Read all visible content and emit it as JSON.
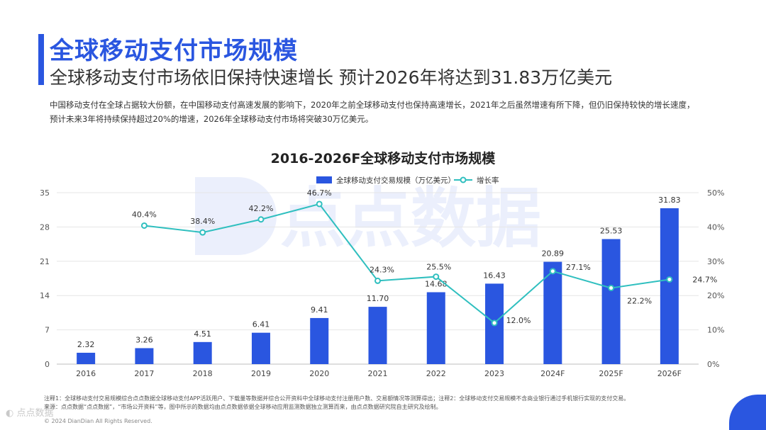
{
  "header": {
    "title": "全球移动支付市场规模",
    "subtitle": "全球移动支付市场依旧保持快速增长 预计2026年将达到31.83万亿美元"
  },
  "description": {
    "line1": "中国移动支付在全球占据较大份额，在中国移动支付高速发展的影响下，2020年之前全球移动支付也保持高速增长，2021年之后虽然增速有所下降，但仍旧保持较快的增长速度，",
    "line2": "预计未来3年将持续保持超过20%的增速，2026年全球移动支付市场将突破30万亿美元。"
  },
  "watermark": {
    "text": "点点数据"
  },
  "chart_data": {
    "type": "bar",
    "title": "2016-2026F全球移动支付市场规模",
    "categories": [
      "2016",
      "2017",
      "2018",
      "2019",
      "2020",
      "2021",
      "2022",
      "2023",
      "2024F",
      "2025F",
      "2026F"
    ],
    "series": [
      {
        "name": "全球移动支付交易规模（万亿美元）",
        "type": "bar",
        "axis": "left",
        "color": "#2a56e0",
        "values": [
          2.32,
          3.26,
          4.51,
          6.41,
          9.41,
          11.7,
          14.68,
          16.43,
          20.89,
          25.53,
          31.83
        ],
        "labels": [
          "2.32",
          "3.26",
          "4.51",
          "6.41",
          "9.41",
          "11.70",
          "14.68",
          "16.43",
          "20.89",
          "25.53",
          "31.83"
        ]
      },
      {
        "name": "增长率",
        "type": "line",
        "axis": "right",
        "color": "#2fbfbf",
        "values": [
          null,
          40.4,
          38.4,
          42.2,
          46.7,
          24.3,
          25.5,
          12.0,
          27.1,
          22.2,
          24.7
        ],
        "labels": [
          "",
          "40.4%",
          "38.4%",
          "42.2%",
          "46.7%",
          "24.3%",
          "25.5%",
          "12.0%",
          "27.1%",
          "22.2%",
          "24.7%"
        ]
      }
    ],
    "y_left": {
      "min": 0,
      "max": 35,
      "ticks": [
        "0",
        "7",
        "14",
        "21",
        "28",
        "35"
      ]
    },
    "y_right": {
      "min": 0,
      "max": 50,
      "ticks": [
        "0%",
        "10%",
        "20%",
        "30%",
        "40%",
        "50%"
      ]
    },
    "grid": true,
    "legend": "top-center"
  },
  "footer": {
    "note1": "注释1：全球移动支付交易规模综合点点数据全球移动支付APP活跃用户、下载量等数据并综合公开资料中全球移动支付注册用户数、交易额情况等测算得出；注释2：全球移动支付交易规模不含商业银行通过手机银行实现的支付交易。",
    "note2": "来源：点点数据“点点数据”，“市场公开资料”等，图中所示的数据均由点点数据依据全球移动应用监测数据独立测算而来，由点点数据研究院自主研究及绘制。",
    "copyright": "© 2024 DianDian All Rights Reserved.",
    "brand": "点点数据"
  }
}
